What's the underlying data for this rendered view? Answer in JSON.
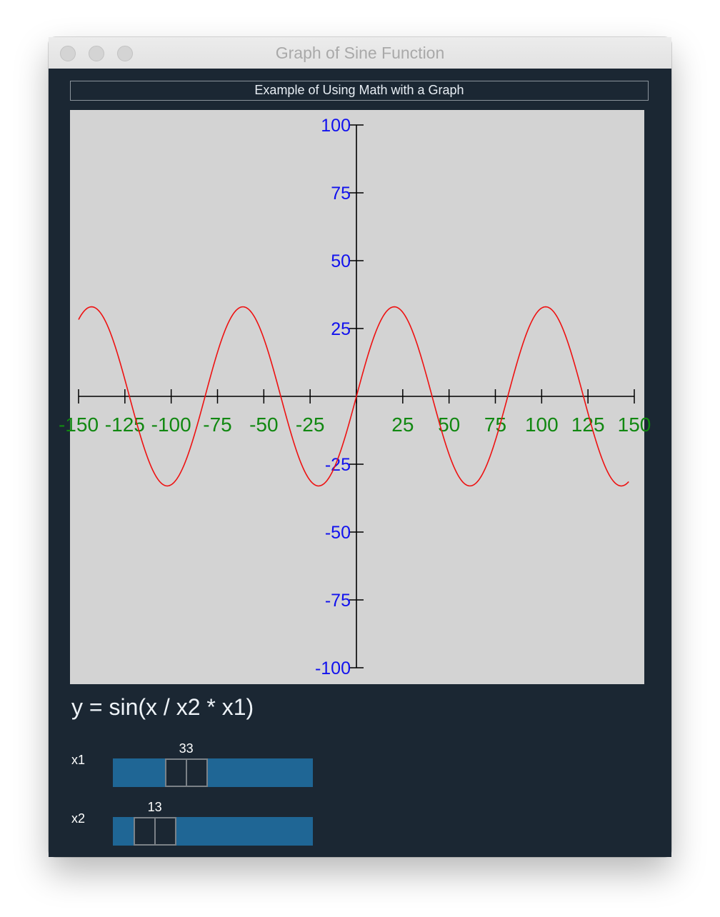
{
  "window": {
    "title": "Graph of Sine Function"
  },
  "frame": {
    "title": "Example of Using Math with a Graph"
  },
  "formula": "y = sin(x / x2 * x1)",
  "sliders": [
    {
      "label": "x1",
      "value": 33,
      "range": [
        0,
        100
      ]
    },
    {
      "label": "x2",
      "value": 13,
      "range": [
        0,
        100
      ]
    }
  ],
  "colors": {
    "window_bg": "#1b2733",
    "graph_bg": "#d3d3d3",
    "curve": "#ee1111",
    "x_tick_labels": "#118811",
    "y_tick_labels": "#1111ee",
    "slider_trough": "#1f6695"
  },
  "chart_data": {
    "type": "line",
    "function": "y = sin(x / x2 * x1)",
    "xlim": [
      -150,
      150
    ],
    "ylim": [
      -100,
      100
    ],
    "x_ticks": [
      -150,
      -125,
      -100,
      -75,
      -50,
      -25,
      25,
      50,
      75,
      100,
      125,
      150
    ],
    "x_tick_labels": [
      "-150",
      "-125",
      "-100",
      "-75",
      "-50",
      "-25",
      "25",
      "50",
      "75",
      "100",
      "125",
      "150"
    ],
    "y_ticks": [
      100,
      75,
      50,
      25,
      -25,
      -50,
      -75,
      -100
    ],
    "y_tick_labels": [
      "100",
      "75",
      "50",
      "25",
      "-25",
      "-50",
      "-75",
      "-100"
    ],
    "amplitude": 33,
    "period": 81.7,
    "x_range": [
      -150,
      147
    ]
  }
}
